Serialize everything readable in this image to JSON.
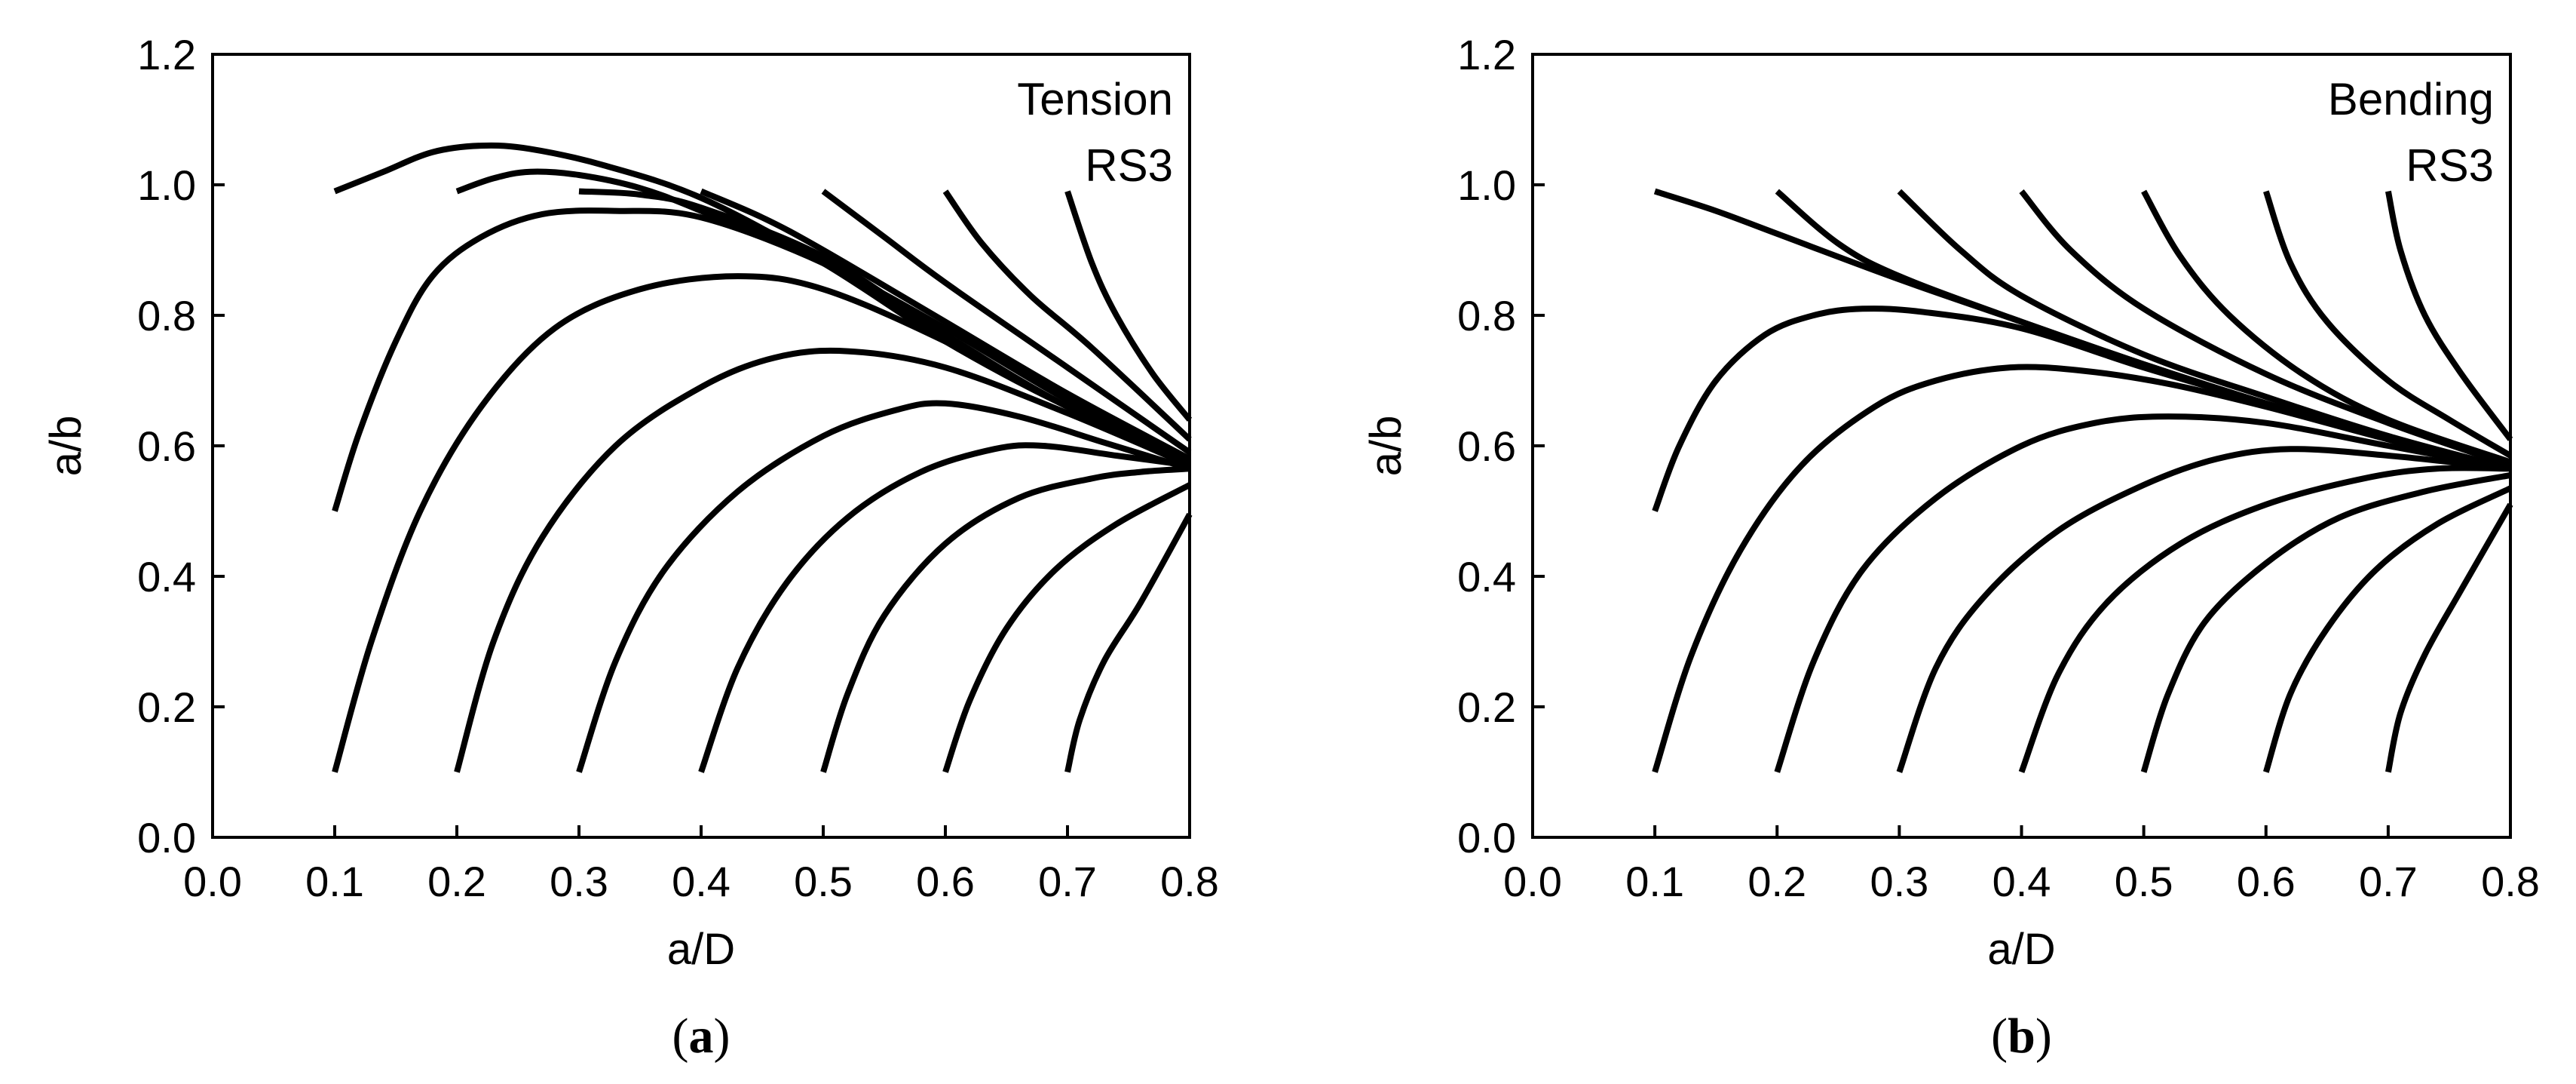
{
  "chart_data": [
    {
      "type": "line",
      "caption": "a",
      "xlabel": "a/D",
      "ylabel": "a/b",
      "xlim": [
        0.0,
        0.8
      ],
      "ylim": [
        0.0,
        1.2
      ],
      "xticks": [
        "0.0",
        "0.1",
        "0.2",
        "0.3",
        "0.4",
        "0.5",
        "0.6",
        "0.7",
        "0.8"
      ],
      "yticks": [
        "0.0",
        "0.2",
        "0.4",
        "0.6",
        "0.8",
        "1.0",
        "1.2"
      ],
      "annotation": [
        "Tension",
        "RS3"
      ],
      "grid": false,
      "series": [
        {
          "points": [
            [
              0.1,
              0.99
            ],
            [
              0.14,
              1.02
            ],
            [
              0.18,
              1.05
            ],
            [
              0.22,
              1.06
            ],
            [
              0.26,
              1.055
            ],
            [
              0.32,
              1.03
            ],
            [
              0.4,
              0.98
            ],
            [
              0.5,
              0.88
            ],
            [
              0.6,
              0.76
            ],
            [
              0.7,
              0.66
            ],
            [
              0.8,
              0.58
            ]
          ]
        },
        {
          "points": [
            [
              0.2,
              0.99
            ],
            [
              0.23,
              1.01
            ],
            [
              0.26,
              1.02
            ],
            [
              0.3,
              1.015
            ],
            [
              0.35,
              0.995
            ],
            [
              0.4,
              0.96
            ],
            [
              0.5,
              0.88
            ],
            [
              0.6,
              0.77
            ],
            [
              0.7,
              0.66
            ],
            [
              0.8,
              0.58
            ]
          ]
        },
        {
          "points": [
            [
              0.3,
              0.99
            ],
            [
              0.35,
              0.985
            ],
            [
              0.4,
              0.965
            ],
            [
              0.5,
              0.89
            ],
            [
              0.6,
              0.77
            ],
            [
              0.7,
              0.66
            ],
            [
              0.8,
              0.575
            ]
          ]
        },
        {
          "points": [
            [
              0.4,
              0.99
            ],
            [
              0.45,
              0.95
            ],
            [
              0.5,
              0.9
            ],
            [
              0.6,
              0.79
            ],
            [
              0.7,
              0.68
            ],
            [
              0.8,
              0.58
            ]
          ]
        },
        {
          "points": [
            [
              0.5,
              0.99
            ],
            [
              0.55,
              0.92
            ],
            [
              0.6,
              0.85
            ],
            [
              0.7,
              0.72
            ],
            [
              0.8,
              0.59
            ]
          ]
        },
        {
          "points": [
            [
              0.6,
              0.99
            ],
            [
              0.63,
              0.91
            ],
            [
              0.67,
              0.83
            ],
            [
              0.72,
              0.75
            ],
            [
              0.8,
              0.61
            ]
          ]
        },
        {
          "points": [
            [
              0.7,
              0.99
            ],
            [
              0.72,
              0.88
            ],
            [
              0.74,
              0.8
            ],
            [
              0.77,
              0.71
            ],
            [
              0.8,
              0.64
            ]
          ]
        },
        {
          "points": [
            [
              0.1,
              0.5
            ],
            [
              0.12,
              0.62
            ],
            [
              0.15,
              0.76
            ],
            [
              0.18,
              0.86
            ],
            [
              0.22,
              0.92
            ],
            [
              0.27,
              0.955
            ],
            [
              0.33,
              0.96
            ],
            [
              0.4,
              0.95
            ],
            [
              0.5,
              0.88
            ],
            [
              0.6,
              0.78
            ],
            [
              0.7,
              0.67
            ],
            [
              0.8,
              0.575
            ]
          ]
        },
        {
          "points": [
            [
              0.1,
              0.1
            ],
            [
              0.13,
              0.3
            ],
            [
              0.17,
              0.5
            ],
            [
              0.22,
              0.66
            ],
            [
              0.28,
              0.78
            ],
            [
              0.35,
              0.84
            ],
            [
              0.43,
              0.86
            ],
            [
              0.5,
              0.84
            ],
            [
              0.6,
              0.76
            ],
            [
              0.7,
              0.66
            ],
            [
              0.8,
              0.575
            ]
          ]
        },
        {
          "points": [
            [
              0.2,
              0.1
            ],
            [
              0.23,
              0.3
            ],
            [
              0.27,
              0.46
            ],
            [
              0.33,
              0.6
            ],
            [
              0.4,
              0.69
            ],
            [
              0.46,
              0.735
            ],
            [
              0.52,
              0.745
            ],
            [
              0.6,
              0.72
            ],
            [
              0.7,
              0.65
            ],
            [
              0.8,
              0.57
            ]
          ]
        },
        {
          "points": [
            [
              0.3,
              0.1
            ],
            [
              0.33,
              0.27
            ],
            [
              0.37,
              0.41
            ],
            [
              0.43,
              0.53
            ],
            [
              0.5,
              0.615
            ],
            [
              0.56,
              0.655
            ],
            [
              0.6,
              0.665
            ],
            [
              0.66,
              0.645
            ],
            [
              0.73,
              0.605
            ],
            [
              0.8,
              0.565
            ]
          ]
        },
        {
          "points": [
            [
              0.4,
              0.1
            ],
            [
              0.43,
              0.26
            ],
            [
              0.47,
              0.39
            ],
            [
              0.52,
              0.49
            ],
            [
              0.58,
              0.56
            ],
            [
              0.64,
              0.595
            ],
            [
              0.68,
              0.6
            ],
            [
              0.74,
              0.585
            ],
            [
              0.8,
              0.57
            ]
          ]
        },
        {
          "points": [
            [
              0.5,
              0.1
            ],
            [
              0.52,
              0.22
            ],
            [
              0.55,
              0.34
            ],
            [
              0.6,
              0.45
            ],
            [
              0.66,
              0.52
            ],
            [
              0.72,
              0.55
            ],
            [
              0.76,
              0.56
            ],
            [
              0.8,
              0.565
            ]
          ]
        },
        {
          "points": [
            [
              0.6,
              0.1
            ],
            [
              0.62,
              0.21
            ],
            [
              0.65,
              0.32
            ],
            [
              0.69,
              0.41
            ],
            [
              0.74,
              0.48
            ],
            [
              0.8,
              0.54
            ]
          ]
        },
        {
          "points": [
            [
              0.7,
              0.1
            ],
            [
              0.71,
              0.18
            ],
            [
              0.73,
              0.27
            ],
            [
              0.76,
              0.36
            ],
            [
              0.8,
              0.495
            ]
          ]
        }
      ]
    },
    {
      "type": "line",
      "caption": "b",
      "xlabel": "a/D",
      "ylabel": "a/b",
      "xlim": [
        0.0,
        0.8
      ],
      "ylim": [
        0.0,
        1.2
      ],
      "xticks": [
        "0.0",
        "0.1",
        "0.2",
        "0.3",
        "0.4",
        "0.5",
        "0.6",
        "0.7",
        "0.8"
      ],
      "yticks": [
        "0.0",
        "0.2",
        "0.4",
        "0.6",
        "0.8",
        "1.0",
        "1.2"
      ],
      "annotation": [
        "Bending",
        "RS3"
      ],
      "grid": false,
      "series": [
        {
          "points": [
            [
              0.1,
              0.99
            ],
            [
              0.15,
              0.96
            ],
            [
              0.2,
              0.925
            ],
            [
              0.3,
              0.855
            ],
            [
              0.4,
              0.79
            ],
            [
              0.5,
              0.725
            ],
            [
              0.6,
              0.665
            ],
            [
              0.7,
              0.61
            ],
            [
              0.8,
              0.565
            ]
          ]
        },
        {
          "points": [
            [
              0.2,
              0.99
            ],
            [
              0.25,
              0.91
            ],
            [
              0.3,
              0.86
            ],
            [
              0.4,
              0.79
            ],
            [
              0.5,
              0.725
            ],
            [
              0.6,
              0.665
            ],
            [
              0.7,
              0.61
            ],
            [
              0.8,
              0.565
            ]
          ]
        },
        {
          "points": [
            [
              0.3,
              0.99
            ],
            [
              0.35,
              0.9
            ],
            [
              0.4,
              0.83
            ],
            [
              0.5,
              0.74
            ],
            [
              0.6,
              0.675
            ],
            [
              0.7,
              0.615
            ],
            [
              0.8,
              0.565
            ]
          ]
        },
        {
          "points": [
            [
              0.4,
              0.99
            ],
            [
              0.44,
              0.9
            ],
            [
              0.5,
              0.81
            ],
            [
              0.6,
              0.71
            ],
            [
              0.7,
              0.635
            ],
            [
              0.8,
              0.57
            ]
          ]
        },
        {
          "points": [
            [
              0.5,
              0.99
            ],
            [
              0.53,
              0.89
            ],
            [
              0.57,
              0.8
            ],
            [
              0.63,
              0.71
            ],
            [
              0.7,
              0.64
            ],
            [
              0.8,
              0.575
            ]
          ]
        },
        {
          "points": [
            [
              0.6,
              0.99
            ],
            [
              0.62,
              0.88
            ],
            [
              0.65,
              0.79
            ],
            [
              0.7,
              0.7
            ],
            [
              0.75,
              0.64
            ],
            [
              0.8,
              0.585
            ]
          ]
        },
        {
          "points": [
            [
              0.7,
              0.99
            ],
            [
              0.71,
              0.9
            ],
            [
              0.73,
              0.8
            ],
            [
              0.76,
              0.71
            ],
            [
              0.8,
              0.61
            ]
          ]
        },
        {
          "points": [
            [
              0.1,
              0.5
            ],
            [
              0.12,
              0.6
            ],
            [
              0.15,
              0.7
            ],
            [
              0.19,
              0.77
            ],
            [
              0.23,
              0.8
            ],
            [
              0.27,
              0.81
            ],
            [
              0.32,
              0.805
            ],
            [
              0.4,
              0.78
            ],
            [
              0.5,
              0.72
            ],
            [
              0.6,
              0.665
            ],
            [
              0.7,
              0.61
            ],
            [
              0.8,
              0.565
            ]
          ]
        },
        {
          "points": [
            [
              0.1,
              0.1
            ],
            [
              0.13,
              0.28
            ],
            [
              0.17,
              0.44
            ],
            [
              0.22,
              0.57
            ],
            [
              0.28,
              0.66
            ],
            [
              0.33,
              0.7
            ],
            [
              0.39,
              0.72
            ],
            [
              0.45,
              0.715
            ],
            [
              0.52,
              0.695
            ],
            [
              0.6,
              0.66
            ],
            [
              0.7,
              0.61
            ],
            [
              0.8,
              0.565
            ]
          ]
        },
        {
          "points": [
            [
              0.2,
              0.1
            ],
            [
              0.23,
              0.27
            ],
            [
              0.27,
              0.41
            ],
            [
              0.33,
              0.52
            ],
            [
              0.4,
              0.6
            ],
            [
              0.46,
              0.635
            ],
            [
              0.52,
              0.645
            ],
            [
              0.6,
              0.635
            ],
            [
              0.7,
              0.6
            ],
            [
              0.8,
              0.565
            ]
          ]
        },
        {
          "points": [
            [
              0.3,
              0.1
            ],
            [
              0.33,
              0.26
            ],
            [
              0.37,
              0.37
            ],
            [
              0.43,
              0.47
            ],
            [
              0.5,
              0.54
            ],
            [
              0.56,
              0.58
            ],
            [
              0.62,
              0.595
            ],
            [
              0.7,
              0.585
            ],
            [
              0.8,
              0.565
            ]
          ]
        },
        {
          "points": [
            [
              0.4,
              0.1
            ],
            [
              0.43,
              0.25
            ],
            [
              0.47,
              0.36
            ],
            [
              0.53,
              0.45
            ],
            [
              0.6,
              0.51
            ],
            [
              0.68,
              0.55
            ],
            [
              0.74,
              0.565
            ],
            [
              0.8,
              0.565
            ]
          ]
        },
        {
          "points": [
            [
              0.5,
              0.1
            ],
            [
              0.52,
              0.22
            ],
            [
              0.55,
              0.33
            ],
            [
              0.6,
              0.42
            ],
            [
              0.66,
              0.49
            ],
            [
              0.73,
              0.53
            ],
            [
              0.8,
              0.555
            ]
          ]
        },
        {
          "points": [
            [
              0.6,
              0.1
            ],
            [
              0.62,
              0.22
            ],
            [
              0.65,
              0.32
            ],
            [
              0.69,
              0.41
            ],
            [
              0.74,
              0.48
            ],
            [
              0.8,
              0.535
            ]
          ]
        },
        {
          "points": [
            [
              0.7,
              0.1
            ],
            [
              0.71,
              0.19
            ],
            [
              0.73,
              0.28
            ],
            [
              0.76,
              0.38
            ],
            [
              0.8,
              0.51
            ]
          ]
        }
      ]
    }
  ]
}
